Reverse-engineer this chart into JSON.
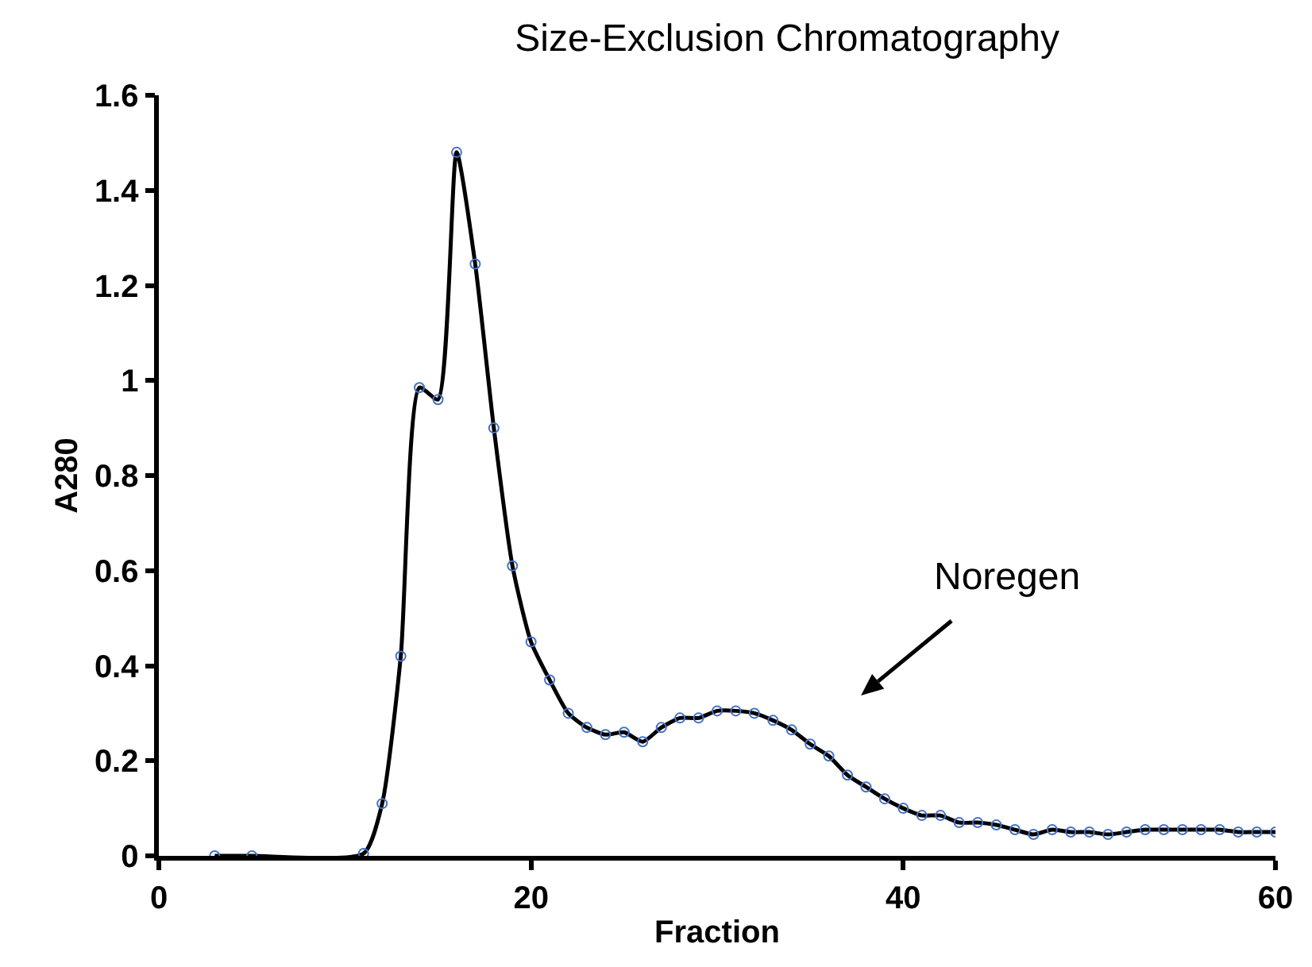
{
  "chart_data": {
    "type": "line",
    "title": "Size-Exclusion Chromatography",
    "xlabel": "Fraction",
    "ylabel": "A280",
    "x": [
      3,
      5,
      11,
      12,
      13,
      14,
      15,
      16,
      17,
      18,
      19,
      20,
      21,
      22,
      23,
      24,
      25,
      26,
      27,
      28,
      29,
      30,
      31,
      32,
      33,
      34,
      35,
      36,
      37,
      38,
      39,
      40,
      41,
      42,
      43,
      44,
      45,
      46,
      47,
      48,
      49,
      50,
      51,
      52,
      53,
      54,
      55,
      56,
      57,
      58,
      59,
      60
    ],
    "series": [
      {
        "color": "#000000",
        "values": [
          0,
          0,
          0.005,
          0.11,
          0.42,
          0.985,
          0.96,
          1.48,
          1.245,
          0.9,
          0.61,
          0.45,
          0.37,
          0.3,
          0.27,
          0.255,
          0.26,
          0.24,
          0.27,
          0.29,
          0.29,
          0.305,
          0.305,
          0.3,
          0.285,
          0.265,
          0.235,
          0.21,
          0.17,
          0.145,
          0.12,
          0.1,
          0.085,
          0.085,
          0.07,
          0.07,
          0.065,
          0.055,
          0.045,
          0.055,
          0.05,
          0.05,
          0.045,
          0.05,
          0.055,
          0.055,
          0.055,
          0.055,
          0.055,
          0.05,
          0.05,
          0.05
        ]
      }
    ],
    "xlim": [
      0,
      60
    ],
    "xticks": [
      0,
      20,
      40,
      60
    ],
    "ylim": [
      0,
      1.6
    ],
    "yticks": [
      0,
      0.2,
      0.4,
      0.6,
      0.8,
      1,
      1.2,
      1.4,
      1.6
    ],
    "grid": false,
    "marker": "circle",
    "line_style": "solid",
    "annotations": [
      "Noregen"
    ]
  }
}
